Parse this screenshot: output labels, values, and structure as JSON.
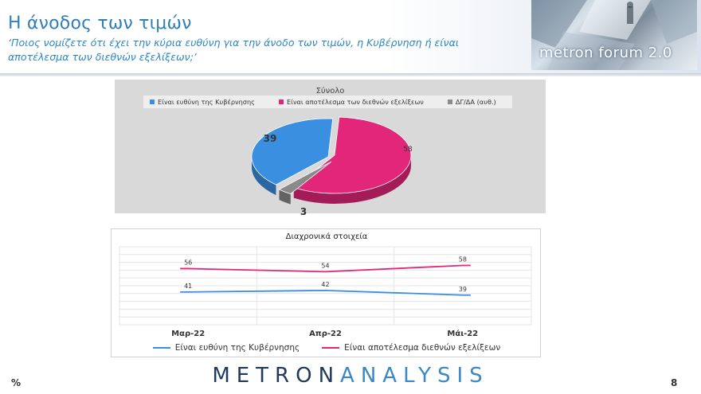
{
  "header": {
    "title": "Η άνοδος των τιμών",
    "subtitle": "‘Ποιος νομίζετε ότι έχει την κύρια ευθύνη για την άνοδο των τιμών, η Κυβέρνηση ή είναι αποτέλεσμα των διεθνών εξελίξεων;’",
    "logo_text": "metron forum 2.0"
  },
  "chart_data": [
    {
      "type": "pie",
      "title": "Σύνολο",
      "legend_position": "top",
      "categories": [
        "Είναι ευθύνη της Κυβέρνησης",
        "Είναι αποτέλεσμα των διεθνών εξελίξεων",
        "ΔΓ/ΔΑ (αυθ.)"
      ],
      "values": [
        39,
        58,
        3
      ],
      "colors": [
        "#3b8fe0",
        "#e2277a",
        "#8a8a8a"
      ]
    },
    {
      "type": "line",
      "title": "Διαχρονικά στοιχεία",
      "legend_position": "bottom",
      "grid": true,
      "categories": [
        "Μαρ-22",
        "Απρ-22",
        "Μάι-22"
      ],
      "series": [
        {
          "name": "Είναι ευθύνη της Κυβέρνησης",
          "values": [
            41,
            42,
            39
          ],
          "color": "#3b8fe0"
        },
        {
          "name": "Είναι αποτέλεσμα διεθνών εξελίξεων",
          "values": [
            56,
            54,
            58
          ],
          "color": "#e2277a"
        }
      ]
    }
  ],
  "footer": {
    "unit": "%",
    "page_number": "8",
    "brand_a": "METRON",
    "brand_b": "ANALYSIS"
  }
}
